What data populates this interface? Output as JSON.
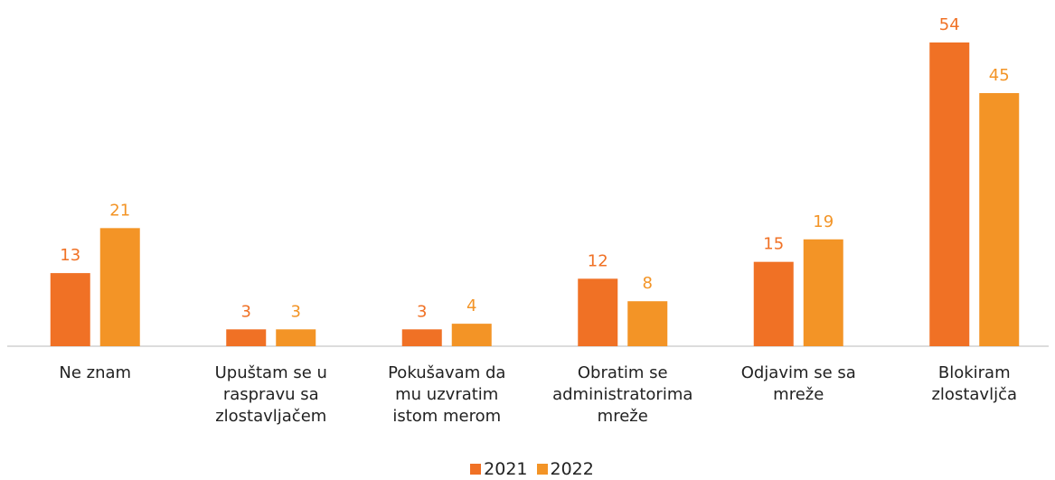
{
  "chart_data": {
    "type": "bar",
    "categories": [
      "Ne znam",
      "Upuštam se u\nraspravu sa\nzlostavljačem",
      "Pokušavam da\nmu uzvratim\nistom merom",
      "Obratim se\nadministratorima\nmreže",
      "Odjavim se sa\nmreže",
      "Blokiram\nzlostavljča"
    ],
    "series": [
      {
        "name": "2021",
        "color": "#f07125",
        "values": [
          13,
          3,
          3,
          12,
          15,
          54
        ]
      },
      {
        "name": "2022",
        "color": "#f39426",
        "values": [
          21,
          3,
          4,
          8,
          19,
          45
        ]
      }
    ],
    "legend": "bottom"
  }
}
